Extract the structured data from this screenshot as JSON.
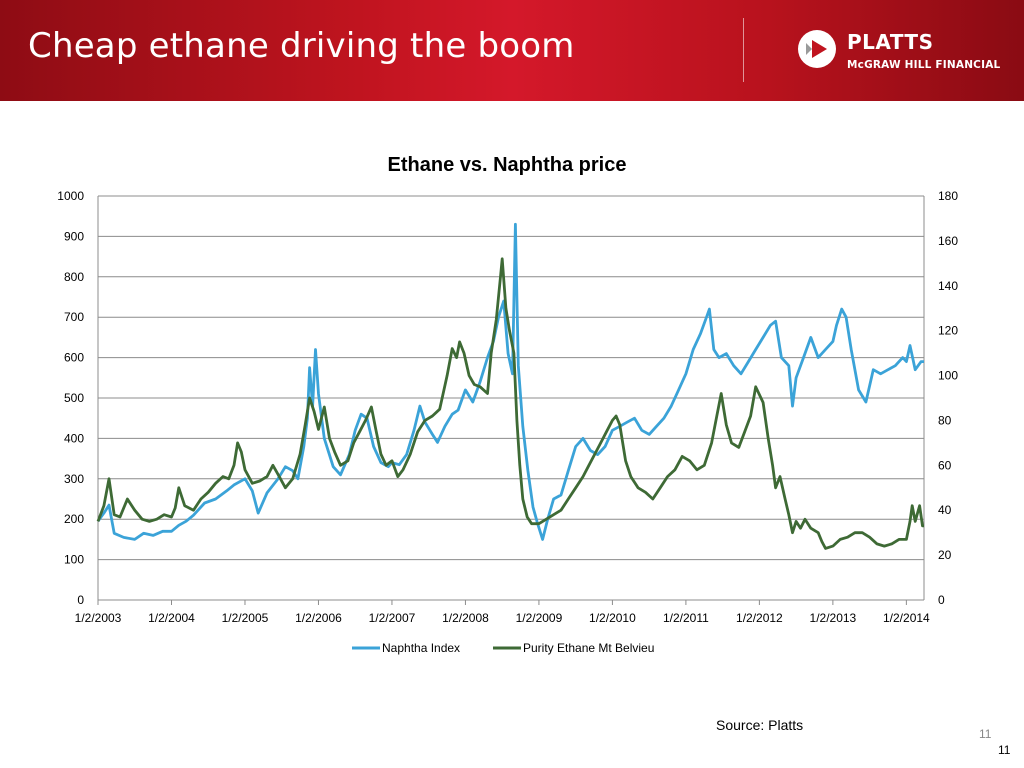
{
  "slide": {
    "title": "Cheap ethane driving the boom",
    "brand": {
      "name": "PLATTS",
      "sub": "McGRAW HILL FINANCIAL"
    },
    "source": "Source: Platts",
    "page_number": "11",
    "page_number_footer": "11"
  },
  "colors": {
    "header": "#c0141f",
    "naphtha": "#3ba3d8",
    "ethane": "#3e6a35",
    "grid": "#8c8c8c"
  },
  "chart_data": {
    "type": "line",
    "title": "Ethane vs. Naphtha price",
    "xlabel": "",
    "ylabel": "",
    "x_ticks": [
      "1/2/2003",
      "1/2/2004",
      "1/2/2005",
      "1/2/2006",
      "1/2/2007",
      "1/2/2008",
      "1/2/2009",
      "1/2/2010",
      "1/2/2011",
      "1/2/2012",
      "1/2/2013",
      "1/2/2014"
    ],
    "x_range": [
      2003.0,
      2014.24
    ],
    "y_left": {
      "range": [
        0,
        1000
      ],
      "ticks": [
        0,
        100,
        200,
        300,
        400,
        500,
        600,
        700,
        800,
        900,
        1000
      ]
    },
    "y_right": {
      "range": [
        0,
        180
      ],
      "ticks": [
        0,
        20,
        40,
        60,
        80,
        100,
        120,
        140,
        160,
        180
      ]
    },
    "grid": true,
    "legend_position": "bottom",
    "series": [
      {
        "name": "Naphtha Index",
        "axis": "left",
        "color": "#3ba3d8",
        "points": [
          [
            2003.0,
            195
          ],
          [
            2003.08,
            215
          ],
          [
            2003.15,
            235
          ],
          [
            2003.22,
            165
          ],
          [
            2003.35,
            155
          ],
          [
            2003.5,
            150
          ],
          [
            2003.62,
            165
          ],
          [
            2003.75,
            160
          ],
          [
            2003.88,
            170
          ],
          [
            2004.0,
            170
          ],
          [
            2004.1,
            185
          ],
          [
            2004.2,
            195
          ],
          [
            2004.3,
            210
          ],
          [
            2004.45,
            240
          ],
          [
            2004.6,
            250
          ],
          [
            2004.75,
            270
          ],
          [
            2004.85,
            285
          ],
          [
            2005.0,
            300
          ],
          [
            2005.1,
            270
          ],
          [
            2005.18,
            215
          ],
          [
            2005.3,
            265
          ],
          [
            2005.45,
            300
          ],
          [
            2005.55,
            330
          ],
          [
            2005.65,
            320
          ],
          [
            2005.72,
            300
          ],
          [
            2005.8,
            380
          ],
          [
            2005.85,
            450
          ],
          [
            2005.88,
            575
          ],
          [
            2005.92,
            480
          ],
          [
            2005.96,
            620
          ],
          [
            2006.0,
            510
          ],
          [
            2006.08,
            400
          ],
          [
            2006.2,
            330
          ],
          [
            2006.3,
            310
          ],
          [
            2006.42,
            360
          ],
          [
            2006.5,
            420
          ],
          [
            2006.58,
            460
          ],
          [
            2006.66,
            450
          ],
          [
            2006.75,
            380
          ],
          [
            2006.85,
            340
          ],
          [
            2006.95,
            330
          ],
          [
            2007.0,
            340
          ],
          [
            2007.1,
            335
          ],
          [
            2007.2,
            360
          ],
          [
            2007.3,
            420
          ],
          [
            2007.38,
            480
          ],
          [
            2007.45,
            440
          ],
          [
            2007.55,
            410
          ],
          [
            2007.62,
            390
          ],
          [
            2007.72,
            430
          ],
          [
            2007.82,
            460
          ],
          [
            2007.9,
            470
          ],
          [
            2008.0,
            520
          ],
          [
            2008.1,
            490
          ],
          [
            2008.2,
            540
          ],
          [
            2008.3,
            600
          ],
          [
            2008.38,
            640
          ],
          [
            2008.45,
            700
          ],
          [
            2008.52,
            740
          ],
          [
            2008.58,
            610
          ],
          [
            2008.64,
            560
          ],
          [
            2008.68,
            930
          ],
          [
            2008.72,
            580
          ],
          [
            2008.78,
            430
          ],
          [
            2008.85,
            320
          ],
          [
            2008.92,
            230
          ],
          [
            2008.98,
            190
          ],
          [
            2009.05,
            150
          ],
          [
            2009.12,
            200
          ],
          [
            2009.2,
            250
          ],
          [
            2009.3,
            260
          ],
          [
            2009.4,
            320
          ],
          [
            2009.5,
            380
          ],
          [
            2009.6,
            400
          ],
          [
            2009.7,
            370
          ],
          [
            2009.8,
            360
          ],
          [
            2009.9,
            380
          ],
          [
            2010.0,
            420
          ],
          [
            2010.1,
            430
          ],
          [
            2010.2,
            440
          ],
          [
            2010.3,
            450
          ],
          [
            2010.4,
            420
          ],
          [
            2010.5,
            410
          ],
          [
            2010.6,
            430
          ],
          [
            2010.7,
            450
          ],
          [
            2010.8,
            480
          ],
          [
            2010.9,
            520
          ],
          [
            2011.0,
            560
          ],
          [
            2011.1,
            620
          ],
          [
            2011.2,
            660
          ],
          [
            2011.28,
            700
          ],
          [
            2011.32,
            720
          ],
          [
            2011.38,
            620
          ],
          [
            2011.45,
            600
          ],
          [
            2011.55,
            610
          ],
          [
            2011.65,
            580
          ],
          [
            2011.75,
            560
          ],
          [
            2011.85,
            590
          ],
          [
            2011.95,
            620
          ],
          [
            2012.05,
            650
          ],
          [
            2012.15,
            680
          ],
          [
            2012.22,
            690
          ],
          [
            2012.3,
            600
          ],
          [
            2012.4,
            580
          ],
          [
            2012.45,
            480
          ],
          [
            2012.5,
            550
          ],
          [
            2012.6,
            600
          ],
          [
            2012.7,
            650
          ],
          [
            2012.8,
            600
          ],
          [
            2012.9,
            620
          ],
          [
            2013.0,
            640
          ],
          [
            2013.05,
            680
          ],
          [
            2013.12,
            720
          ],
          [
            2013.18,
            700
          ],
          [
            2013.25,
            620
          ],
          [
            2013.35,
            520
          ],
          [
            2013.45,
            490
          ],
          [
            2013.55,
            570
          ],
          [
            2013.65,
            560
          ],
          [
            2013.75,
            570
          ],
          [
            2013.85,
            580
          ],
          [
            2013.95,
            600
          ],
          [
            2014.0,
            590
          ],
          [
            2014.05,
            630
          ],
          [
            2014.12,
            570
          ],
          [
            2014.2,
            590
          ],
          [
            2014.24,
            590
          ]
        ]
      },
      {
        "name": "Purity Ethane Mt Belvieu",
        "axis": "right",
        "color": "#3e6a35",
        "points": [
          [
            2003.0,
            35
          ],
          [
            2003.08,
            42
          ],
          [
            2003.15,
            54
          ],
          [
            2003.22,
            38
          ],
          [
            2003.3,
            37
          ],
          [
            2003.4,
            45
          ],
          [
            2003.5,
            40
          ],
          [
            2003.6,
            36
          ],
          [
            2003.7,
            35
          ],
          [
            2003.8,
            36
          ],
          [
            2003.9,
            38
          ],
          [
            2004.0,
            37
          ],
          [
            2004.05,
            41
          ],
          [
            2004.1,
            50
          ],
          [
            2004.18,
            42
          ],
          [
            2004.3,
            40
          ],
          [
            2004.4,
            45
          ],
          [
            2004.5,
            48
          ],
          [
            2004.6,
            52
          ],
          [
            2004.7,
            55
          ],
          [
            2004.78,
            54
          ],
          [
            2004.85,
            60
          ],
          [
            2004.9,
            70
          ],
          [
            2004.95,
            66
          ],
          [
            2005.0,
            58
          ],
          [
            2005.1,
            52
          ],
          [
            2005.2,
            53
          ],
          [
            2005.3,
            55
          ],
          [
            2005.38,
            60
          ],
          [
            2005.45,
            56
          ],
          [
            2005.55,
            50
          ],
          [
            2005.65,
            54
          ],
          [
            2005.75,
            65
          ],
          [
            2005.82,
            78
          ],
          [
            2005.88,
            90
          ],
          [
            2005.94,
            84
          ],
          [
            2006.0,
            76
          ],
          [
            2006.08,
            86
          ],
          [
            2006.15,
            72
          ],
          [
            2006.22,
            66
          ],
          [
            2006.3,
            60
          ],
          [
            2006.4,
            62
          ],
          [
            2006.48,
            70
          ],
          [
            2006.56,
            75
          ],
          [
            2006.64,
            80
          ],
          [
            2006.72,
            86
          ],
          [
            2006.78,
            76
          ],
          [
            2006.85,
            65
          ],
          [
            2006.92,
            60
          ],
          [
            2007.0,
            62
          ],
          [
            2007.08,
            55
          ],
          [
            2007.15,
            58
          ],
          [
            2007.25,
            65
          ],
          [
            2007.35,
            75
          ],
          [
            2007.45,
            80
          ],
          [
            2007.55,
            82
          ],
          [
            2007.65,
            85
          ],
          [
            2007.75,
            100
          ],
          [
            2007.82,
            112
          ],
          [
            2007.88,
            108
          ],
          [
            2007.92,
            115
          ],
          [
            2007.98,
            110
          ],
          [
            2008.05,
            100
          ],
          [
            2008.12,
            96
          ],
          [
            2008.2,
            95
          ],
          [
            2008.3,
            92
          ],
          [
            2008.35,
            110
          ],
          [
            2008.42,
            125
          ],
          [
            2008.48,
            145
          ],
          [
            2008.5,
            152
          ],
          [
            2008.55,
            130
          ],
          [
            2008.6,
            120
          ],
          [
            2008.66,
            110
          ],
          [
            2008.7,
            80
          ],
          [
            2008.74,
            60
          ],
          [
            2008.78,
            45
          ],
          [
            2008.84,
            37
          ],
          [
            2008.9,
            34
          ],
          [
            2009.0,
            34
          ],
          [
            2009.1,
            36
          ],
          [
            2009.2,
            38
          ],
          [
            2009.3,
            40
          ],
          [
            2009.4,
            45
          ],
          [
            2009.5,
            50
          ],
          [
            2009.6,
            55
          ],
          [
            2009.68,
            60
          ],
          [
            2009.76,
            65
          ],
          [
            2009.84,
            70
          ],
          [
            2009.92,
            75
          ],
          [
            2010.0,
            80
          ],
          [
            2010.05,
            82
          ],
          [
            2010.1,
            78
          ],
          [
            2010.18,
            62
          ],
          [
            2010.25,
            55
          ],
          [
            2010.35,
            50
          ],
          [
            2010.45,
            48
          ],
          [
            2010.55,
            45
          ],
          [
            2010.65,
            50
          ],
          [
            2010.75,
            55
          ],
          [
            2010.85,
            58
          ],
          [
            2010.95,
            64
          ],
          [
            2011.05,
            62
          ],
          [
            2011.15,
            58
          ],
          [
            2011.25,
            60
          ],
          [
            2011.35,
            70
          ],
          [
            2011.42,
            82
          ],
          [
            2011.48,
            92
          ],
          [
            2011.55,
            78
          ],
          [
            2011.62,
            70
          ],
          [
            2011.72,
            68
          ],
          [
            2011.8,
            75
          ],
          [
            2011.88,
            82
          ],
          [
            2011.95,
            95
          ],
          [
            2012.05,
            88
          ],
          [
            2012.12,
            72
          ],
          [
            2012.18,
            60
          ],
          [
            2012.22,
            50
          ],
          [
            2012.28,
            55
          ],
          [
            2012.35,
            45
          ],
          [
            2012.4,
            38
          ],
          [
            2012.45,
            30
          ],
          [
            2012.5,
            35
          ],
          [
            2012.56,
            32
          ],
          [
            2012.62,
            36
          ],
          [
            2012.7,
            32
          ],
          [
            2012.8,
            30
          ],
          [
            2012.85,
            26
          ],
          [
            2012.9,
            23
          ],
          [
            2013.0,
            24
          ],
          [
            2013.1,
            27
          ],
          [
            2013.2,
            28
          ],
          [
            2013.3,
            30
          ],
          [
            2013.4,
            30
          ],
          [
            2013.5,
            28
          ],
          [
            2013.6,
            25
          ],
          [
            2013.7,
            24
          ],
          [
            2013.8,
            25
          ],
          [
            2013.9,
            27
          ],
          [
            2014.0,
            27
          ],
          [
            2014.05,
            35
          ],
          [
            2014.08,
            42
          ],
          [
            2014.12,
            35
          ],
          [
            2014.18,
            42
          ],
          [
            2014.22,
            33
          ],
          [
            2014.24,
            33
          ]
        ]
      }
    ]
  }
}
